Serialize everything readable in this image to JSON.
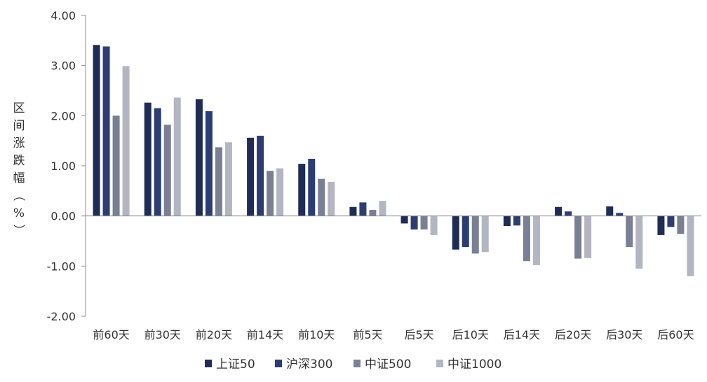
{
  "chart_data": {
    "type": "bar",
    "title": "",
    "xlabel": "",
    "ylabel": "区间涨跌幅（%）",
    "ylim": [
      -2.0,
      4.0
    ],
    "yticks": [
      "4.00",
      "3.00",
      "2.00",
      "1.00",
      "0.00",
      "-1.00",
      "-2.00"
    ],
    "grid": false,
    "legend_position": "bottom",
    "categories": [
      "前60天",
      "前30天",
      "前20天",
      "前14天",
      "前10天",
      "前5天",
      "后5天",
      "后10天",
      "后14天",
      "后20天",
      "后30天",
      "后60天"
    ],
    "series": [
      {
        "name": "上证50",
        "color": "#1f2c55",
        "values": [
          3.41,
          2.26,
          2.33,
          1.56,
          1.04,
          0.18,
          -0.15,
          -0.67,
          -0.2,
          0.18,
          0.19,
          -0.38
        ]
      },
      {
        "name": "沪深300",
        "color": "#2b3d73",
        "values": [
          3.38,
          2.15,
          2.09,
          1.6,
          1.14,
          0.27,
          -0.27,
          -0.62,
          -0.19,
          0.09,
          0.06,
          -0.22
        ]
      },
      {
        "name": "中证500",
        "color": "#7a7f94",
        "values": [
          2.0,
          1.82,
          1.37,
          0.9,
          0.74,
          0.12,
          -0.27,
          -0.75,
          -0.9,
          -0.85,
          -0.62,
          -0.36
        ]
      },
      {
        "name": "中证1000",
        "color": "#b3b5c2",
        "values": [
          2.99,
          2.36,
          1.47,
          0.95,
          0.68,
          0.3,
          -0.38,
          -0.72,
          -0.98,
          -0.84,
          -1.05,
          -1.2
        ]
      }
    ]
  }
}
